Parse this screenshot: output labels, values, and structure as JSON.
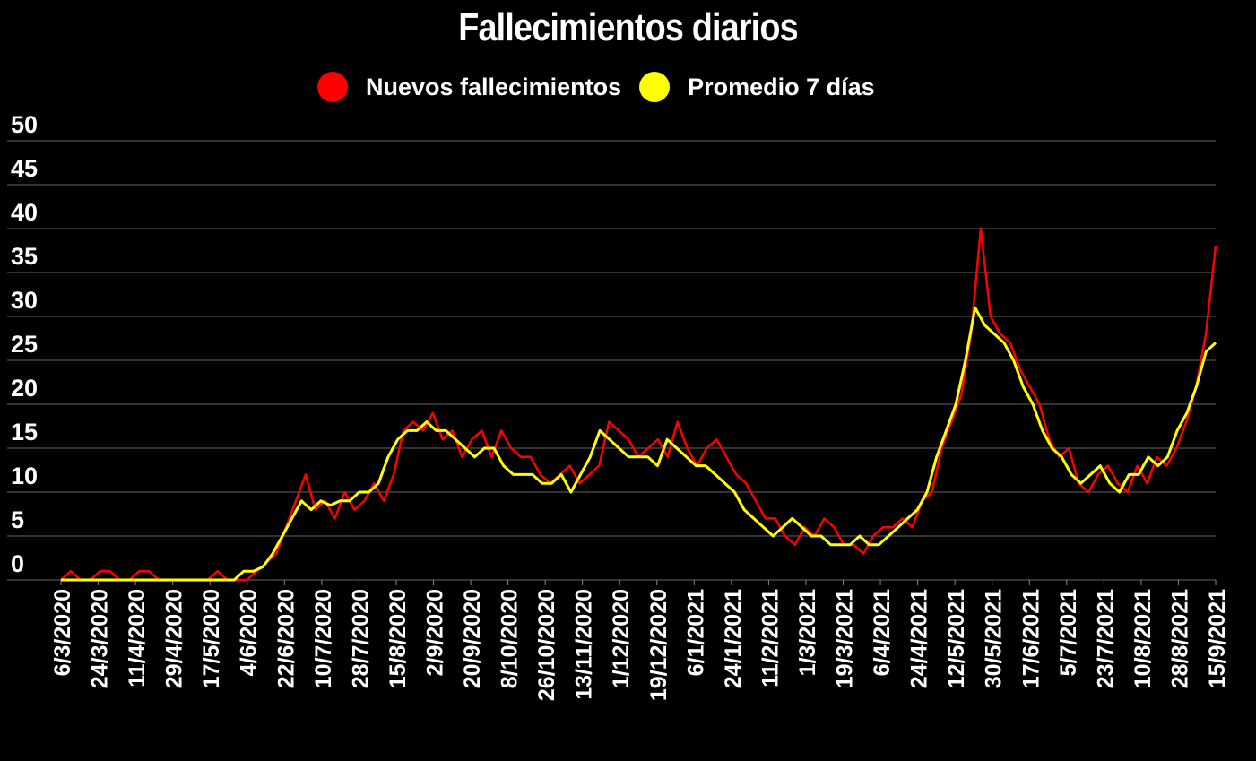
{
  "chart_data": {
    "type": "line",
    "title": "Fallecimientos diarios",
    "xlabel": "",
    "ylabel": "",
    "ylim": [
      0,
      50
    ],
    "yticks": [
      "0",
      "5",
      "10",
      "15",
      "20",
      "25",
      "30",
      "35",
      "40",
      "45",
      "50"
    ],
    "grid": "horizontal",
    "legend_position": "top-center",
    "x_tick_labels": [
      "6/3/2020",
      "24/3/2020",
      "11/4/2020",
      "29/4/2020",
      "17/5/2020",
      "4/6/2020",
      "22/6/2020",
      "10/7/2020",
      "28/7/2020",
      "15/8/2020",
      "2/9/2020",
      "20/9/2020",
      "8/10/2020",
      "26/10/2020",
      "13/11/2020",
      "1/12/2020",
      "19/12/2020",
      "6/1/2021",
      "24/1/2021",
      "11/2/2021",
      "1/3/2021",
      "19/3/2021",
      "6/4/2021",
      "24/4/2021",
      "12/5/2021",
      "30/5/2021",
      "17/6/2021",
      "5/7/2021",
      "23/7/2021",
      "10/8/2021",
      "28/8/2021",
      "15/9/2021"
    ],
    "series": [
      {
        "name": "Nuevos fallecimientos",
        "color": "#ff0000",
        "x_note": "weekly (every 7 days) from 6/3/2020",
        "values": [
          0,
          1,
          0,
          0,
          1,
          1,
          0,
          0,
          1,
          1,
          0,
          0,
          0,
          0,
          0,
          0,
          1,
          0,
          0,
          0,
          1,
          2,
          3,
          6,
          9,
          12,
          8,
          9,
          7,
          10,
          8,
          9,
          11,
          9,
          12,
          17,
          18,
          17,
          19,
          16,
          17,
          14,
          16,
          17,
          14,
          17,
          15,
          14,
          14,
          12,
          11,
          12,
          13,
          11,
          12,
          13,
          18,
          17,
          16,
          14,
          15,
          16,
          14,
          18,
          15,
          13,
          15,
          16,
          14,
          12,
          11,
          9,
          7,
          7,
          5,
          4,
          6,
          5,
          7,
          6,
          4,
          4,
          3,
          5,
          6,
          6,
          7,
          6,
          9,
          10,
          15,
          18,
          21,
          28,
          40,
          30,
          28,
          27,
          24,
          22,
          20,
          16,
          14,
          15,
          11,
          10,
          12,
          13,
          11,
          10,
          13,
          11,
          14,
          13,
          15,
          18,
          22,
          28,
          38
        ]
      },
      {
        "name": "Promedio 7 días",
        "color": "#ffff00",
        "x_note": "weekly (every 7 days) from 6/3/2020",
        "values": [
          0,
          0,
          0,
          0,
          0,
          0,
          0,
          0,
          0,
          0,
          0,
          0,
          0,
          0,
          0,
          0,
          0,
          0,
          0,
          1,
          1,
          1.5,
          3,
          5,
          7,
          9,
          8,
          9,
          8.5,
          9,
          9,
          10,
          10,
          11,
          14,
          16,
          17,
          17,
          18,
          17,
          17,
          16,
          15,
          14,
          15,
          15,
          13,
          12,
          12,
          12,
          11,
          11,
          12,
          10,
          12,
          14,
          17,
          16,
          15,
          14,
          14,
          14,
          13,
          16,
          15,
          14,
          13,
          13,
          12,
          11,
          10,
          8,
          7,
          6,
          5,
          6,
          7,
          6,
          5,
          5,
          4,
          4,
          4,
          5,
          4,
          4,
          5,
          6,
          7,
          8,
          10,
          14,
          17,
          20,
          25,
          31,
          29,
          28,
          27,
          25,
          22,
          20,
          17,
          15,
          14,
          12,
          11,
          12,
          13,
          11,
          10,
          12,
          12,
          14,
          13,
          14,
          17,
          19,
          22,
          26,
          27
        ]
      }
    ]
  }
}
